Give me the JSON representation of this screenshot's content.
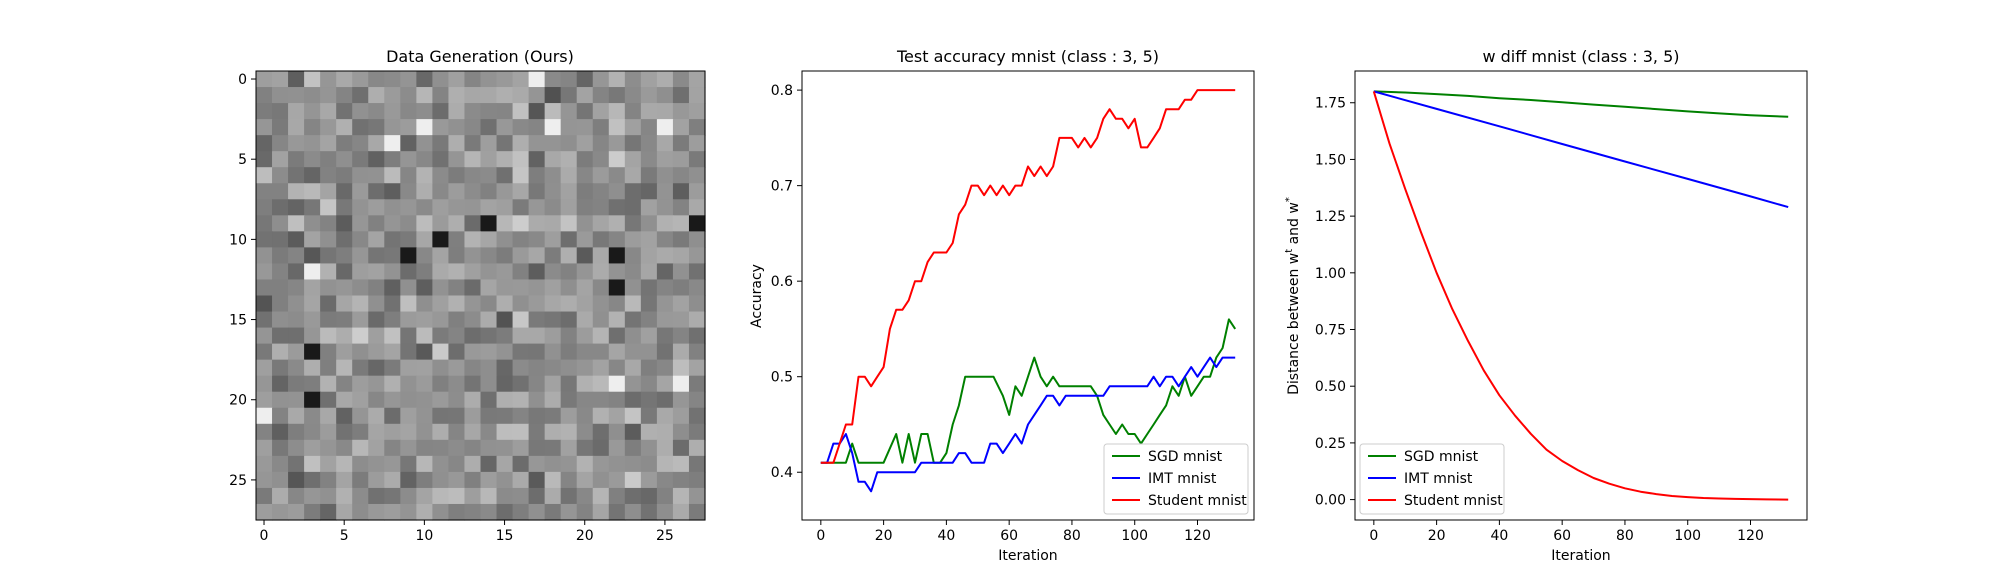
{
  "chart_data": [
    {
      "type": "heatmap",
      "title": "Data Generation (Ours)",
      "xlabel": "",
      "ylabel": "",
      "xticks": [
        "0",
        "5",
        "10",
        "15",
        "20",
        "25"
      ],
      "yticks": [
        "0",
        "5",
        "10",
        "15",
        "20",
        "25"
      ],
      "xlim": [
        -0.5,
        27.5
      ],
      "ylim": [
        -0.5,
        27.5
      ],
      "colormap": "gray",
      "size": 28,
      "seed": 7,
      "dark_cells": [
        [
          22,
          11
        ],
        [
          27,
          9
        ],
        [
          9,
          11
        ],
        [
          11,
          10
        ],
        [
          22,
          13
        ],
        [
          14,
          9
        ],
        [
          3,
          17
        ],
        [
          3,
          20
        ]
      ],
      "light_cells": [
        [
          0,
          21
        ],
        [
          3,
          12
        ],
        [
          10,
          3
        ],
        [
          8,
          4
        ],
        [
          25,
          3
        ],
        [
          17,
          0
        ],
        [
          22,
          19
        ],
        [
          26,
          19
        ],
        [
          18,
          3
        ]
      ]
    },
    {
      "type": "line",
      "title": "Test accuracy mnist (class : 3, 5)",
      "xlabel": "Iteration",
      "ylabel": "Accuracy",
      "xlim": [
        -6,
        138
      ],
      "ylim": [
        0.35,
        0.82
      ],
      "xticks": [
        "0",
        "20",
        "40",
        "60",
        "80",
        "100",
        "120"
      ],
      "yticks": [
        "0.4",
        "0.5",
        "0.6",
        "0.7",
        "0.8"
      ],
      "legend_position": "lower-right",
      "series": [
        {
          "name": "SGD mnist",
          "color": "#008000",
          "x": [
            0,
            8,
            10,
            12,
            15,
            20,
            24,
            26,
            28,
            30,
            32,
            34,
            36,
            38,
            40,
            42,
            44,
            46,
            48,
            50,
            55,
            58,
            60,
            62,
            64,
            66,
            68,
            70,
            72,
            74,
            76,
            78,
            82,
            86,
            88,
            90,
            92,
            94,
            96,
            98,
            100,
            102,
            104,
            106,
            108,
            110,
            112,
            114,
            116,
            118,
            120,
            122,
            124,
            126,
            128,
            130,
            132
          ],
          "values": [
            0.41,
            0.41,
            0.43,
            0.41,
            0.41,
            0.41,
            0.44,
            0.41,
            0.44,
            0.41,
            0.44,
            0.44,
            0.41,
            0.41,
            0.42,
            0.45,
            0.47,
            0.5,
            0.5,
            0.5,
            0.5,
            0.48,
            0.46,
            0.49,
            0.48,
            0.5,
            0.52,
            0.5,
            0.49,
            0.5,
            0.49,
            0.49,
            0.49,
            0.49,
            0.48,
            0.46,
            0.45,
            0.44,
            0.45,
            0.44,
            0.44,
            0.43,
            0.44,
            0.45,
            0.46,
            0.47,
            0.49,
            0.48,
            0.5,
            0.48,
            0.49,
            0.5,
            0.5,
            0.52,
            0.53,
            0.56,
            0.55
          ]
        },
        {
          "name": "IMT mnist",
          "color": "#0000ff",
          "x": [
            0,
            2,
            4,
            6,
            8,
            10,
            12,
            14,
            16,
            18,
            20,
            30,
            32,
            34,
            36,
            38,
            40,
            42,
            44,
            46,
            48,
            50,
            52,
            54,
            56,
            58,
            60,
            62,
            64,
            66,
            68,
            70,
            72,
            74,
            76,
            78,
            80,
            82,
            84,
            86,
            88,
            90,
            92,
            94,
            96,
            98,
            100,
            102,
            104,
            106,
            108,
            110,
            112,
            114,
            116,
            118,
            120,
            122,
            124,
            126,
            128,
            130,
            132
          ],
          "values": [
            0.41,
            0.41,
            0.43,
            0.43,
            0.44,
            0.42,
            0.39,
            0.39,
            0.38,
            0.4,
            0.4,
            0.4,
            0.41,
            0.41,
            0.41,
            0.41,
            0.41,
            0.41,
            0.42,
            0.42,
            0.41,
            0.41,
            0.41,
            0.43,
            0.43,
            0.42,
            0.43,
            0.44,
            0.43,
            0.45,
            0.46,
            0.47,
            0.48,
            0.48,
            0.47,
            0.48,
            0.48,
            0.48,
            0.48,
            0.48,
            0.48,
            0.48,
            0.49,
            0.49,
            0.49,
            0.49,
            0.49,
            0.49,
            0.49,
            0.5,
            0.49,
            0.5,
            0.5,
            0.49,
            0.5,
            0.51,
            0.5,
            0.51,
            0.52,
            0.51,
            0.52,
            0.52,
            0.52
          ]
        },
        {
          "name": "Student mnist",
          "color": "#ff0000",
          "x": [
            0,
            4,
            6,
            8,
            10,
            12,
            14,
            16,
            18,
            20,
            22,
            24,
            26,
            28,
            30,
            32,
            34,
            36,
            38,
            40,
            42,
            44,
            46,
            48,
            50,
            52,
            54,
            56,
            58,
            60,
            62,
            64,
            66,
            68,
            70,
            72,
            74,
            76,
            78,
            80,
            82,
            84,
            86,
            88,
            90,
            92,
            94,
            96,
            98,
            100,
            102,
            104,
            106,
            108,
            110,
            112,
            114,
            116,
            118,
            120,
            122,
            124,
            126,
            128,
            130,
            132
          ],
          "values": [
            0.41,
            0.41,
            0.43,
            0.45,
            0.45,
            0.5,
            0.5,
            0.49,
            0.5,
            0.51,
            0.55,
            0.57,
            0.57,
            0.58,
            0.6,
            0.6,
            0.62,
            0.63,
            0.63,
            0.63,
            0.64,
            0.67,
            0.68,
            0.7,
            0.7,
            0.69,
            0.7,
            0.69,
            0.7,
            0.69,
            0.7,
            0.7,
            0.72,
            0.71,
            0.72,
            0.71,
            0.72,
            0.75,
            0.75,
            0.75,
            0.74,
            0.75,
            0.74,
            0.75,
            0.77,
            0.78,
            0.77,
            0.77,
            0.76,
            0.77,
            0.74,
            0.74,
            0.75,
            0.76,
            0.78,
            0.78,
            0.78,
            0.79,
            0.79,
            0.8,
            0.8,
            0.8,
            0.8,
            0.8,
            0.8,
            0.8
          ]
        }
      ]
    },
    {
      "type": "line",
      "title": "w diff mnist (class : 3, 5)",
      "xlabel": "Iteration",
      "ylabel_parts": [
        "Distance between w",
        "t",
        " and w",
        "*"
      ],
      "xlim": [
        -6,
        138
      ],
      "ylim": [
        -0.09,
        1.89
      ],
      "xticks": [
        "0",
        "20",
        "40",
        "60",
        "80",
        "100",
        "120"
      ],
      "yticks": [
        "0.00",
        "0.25",
        "0.50",
        "0.75",
        "1.00",
        "1.25",
        "1.50",
        "1.75"
      ],
      "legend_position": "lower-left",
      "series": [
        {
          "name": "SGD mnist",
          "color": "#008000",
          "x": [
            0,
            10,
            20,
            30,
            40,
            50,
            60,
            70,
            80,
            90,
            100,
            110,
            120,
            125,
            132
          ],
          "values": [
            1.8,
            1.795,
            1.788,
            1.78,
            1.77,
            1.762,
            1.752,
            1.742,
            1.732,
            1.722,
            1.712,
            1.703,
            1.695,
            1.692,
            1.688
          ]
        },
        {
          "name": "IMT mnist",
          "color": "#0000ff",
          "x": [
            0,
            20,
            40,
            60,
            80,
            100,
            120,
            132
          ],
          "values": [
            1.8,
            1.723,
            1.646,
            1.568,
            1.491,
            1.414,
            1.337,
            1.29
          ]
        },
        {
          "name": "Student mnist",
          "color": "#ff0000",
          "x": [
            0,
            5,
            10,
            15,
            20,
            25,
            30,
            35,
            40,
            45,
            50,
            55,
            60,
            65,
            70,
            75,
            80,
            85,
            90,
            95,
            100,
            105,
            110,
            115,
            120,
            125,
            132
          ],
          "values": [
            1.8,
            1.57,
            1.37,
            1.18,
            1.0,
            0.84,
            0.7,
            0.57,
            0.46,
            0.37,
            0.29,
            0.22,
            0.17,
            0.13,
            0.095,
            0.07,
            0.05,
            0.035,
            0.024,
            0.016,
            0.011,
            0.007,
            0.005,
            0.003,
            0.002,
            0.001,
            0.0
          ]
        }
      ]
    }
  ]
}
